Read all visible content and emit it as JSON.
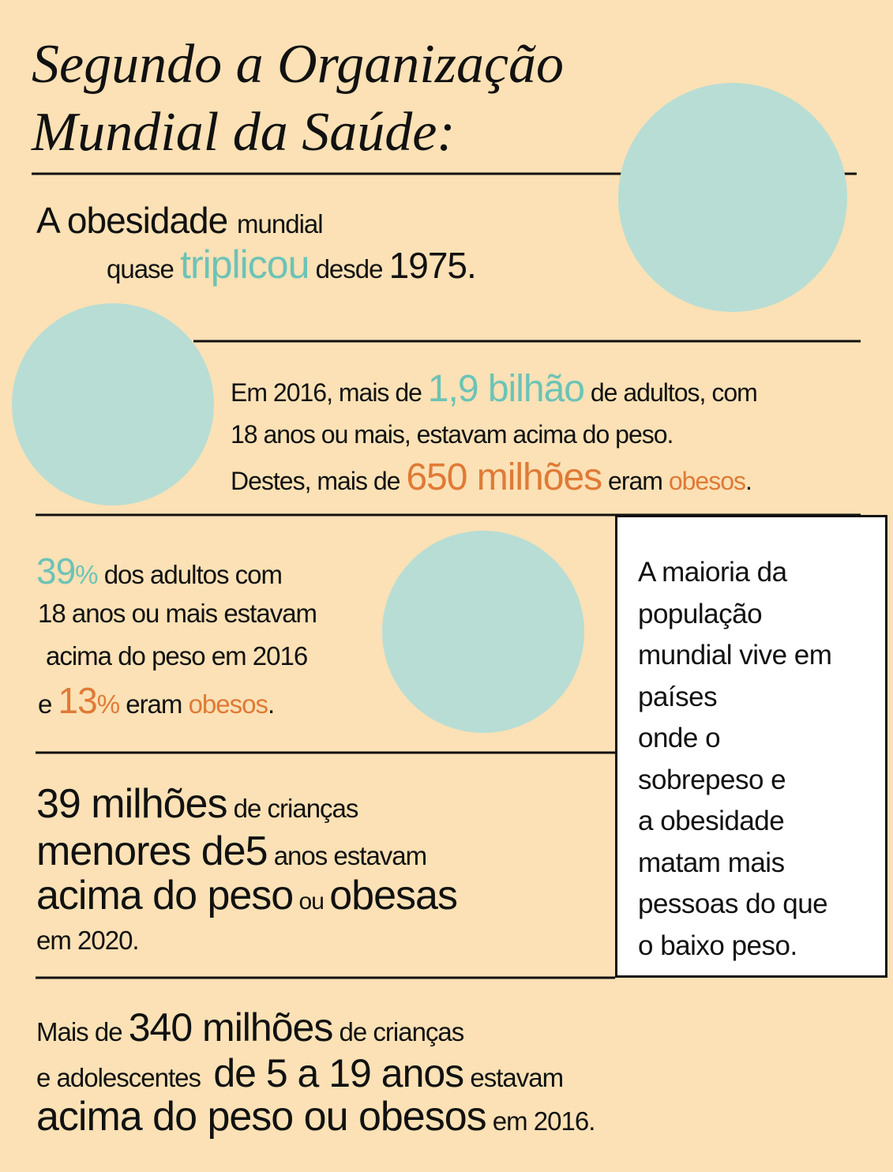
{
  "title": {
    "line1": "Segundo a Organização",
    "line2": "Mundial da Saúde:"
  },
  "fact1": [
    "A obesidade",
    "mundial",
    "quase",
    "triplicou",
    "desde",
    "1975."
  ],
  "fact2": [
    "Em 2016, mais de",
    "1,9 bilhão",
    "de adultos, com",
    "18 anos ou mais, estavam acima do peso.",
    "Destes, mais de",
    "650 milhões",
    "eram",
    "obesos",
    "."
  ],
  "fact3": [
    "39",
    "%",
    "dos adultos com",
    "18 anos ou mais estavam",
    "acima do peso em 2016",
    "e",
    "13",
    "%",
    "eram",
    "obesos",
    "."
  ],
  "fact4": [
    "39 milhões",
    "de crianças",
    "menores de",
    "5",
    "anos estavam",
    "acima do peso",
    "ou",
    "obesas",
    "em 2020."
  ],
  "fact5": [
    "Mais de",
    "340 milhões",
    "de crianças",
    "e adolescentes",
    "de 5 a 19 anos",
    "estavam",
    "acima do peso ou obesos",
    "em 2016."
  ],
  "sidebar": [
    "A maioria da",
    "população",
    "mundial vive em",
    "países",
    "onde o",
    "sobrepeso e",
    "a obesidade",
    "matam mais",
    "pessoas do que",
    "o baixo peso."
  ]
}
